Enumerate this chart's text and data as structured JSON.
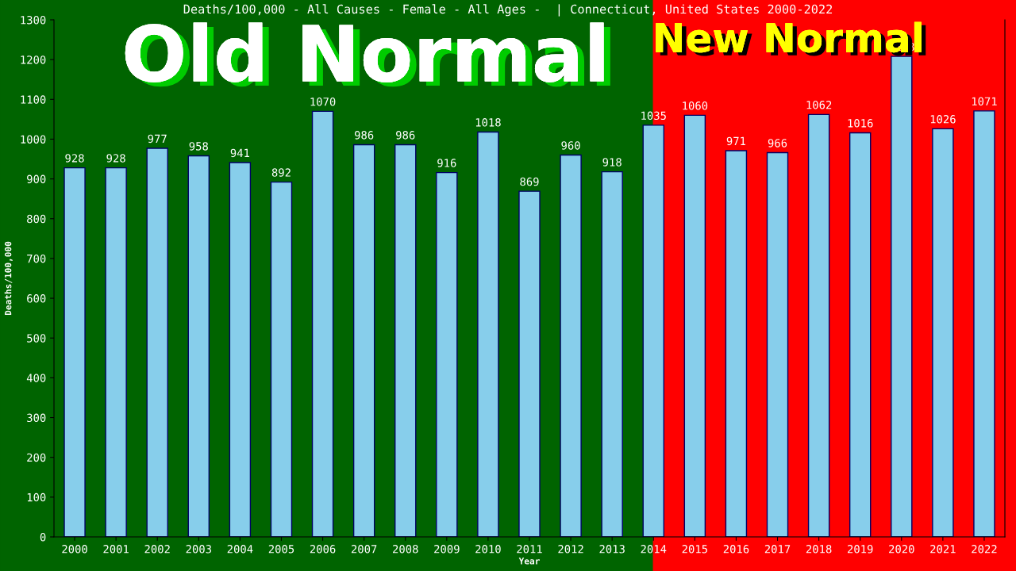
{
  "chart_data": {
    "type": "bar",
    "title": "Deaths/100,000 - All Causes - Female - All Ages -  | Connecticut, United States 2000-2022",
    "xlabel": "Year",
    "ylabel": "Deaths/100,000",
    "categories": [
      "2000",
      "2001",
      "2002",
      "2003",
      "2004",
      "2005",
      "2006",
      "2007",
      "2008",
      "2009",
      "2010",
      "2011",
      "2012",
      "2013",
      "2014",
      "2015",
      "2016",
      "2017",
      "2018",
      "2019",
      "2020",
      "2021",
      "2022"
    ],
    "values": [
      928,
      928,
      977,
      958,
      941,
      892,
      1070,
      986,
      986,
      916,
      1018,
      869,
      960,
      918,
      1035,
      1060,
      971,
      966,
      1062,
      1016,
      1208,
      1026,
      1071
    ],
    "color": "#87ceeb",
    "ylim": [
      0,
      1300
    ],
    "yticks": [
      0,
      100,
      200,
      300,
      400,
      500,
      600,
      700,
      800,
      900,
      1000,
      1100,
      1200,
      1300
    ],
    "data_labels": true,
    "grid": false,
    "legend": false,
    "bands": [
      {
        "axis": "x",
        "from": "2000",
        "to": "2014",
        "label": "Old Normal",
        "color": "#006400"
      },
      {
        "axis": "x",
        "from": "2014",
        "to": "2022",
        "label": "New Normal",
        "color": "#ff0000"
      }
    ]
  }
}
